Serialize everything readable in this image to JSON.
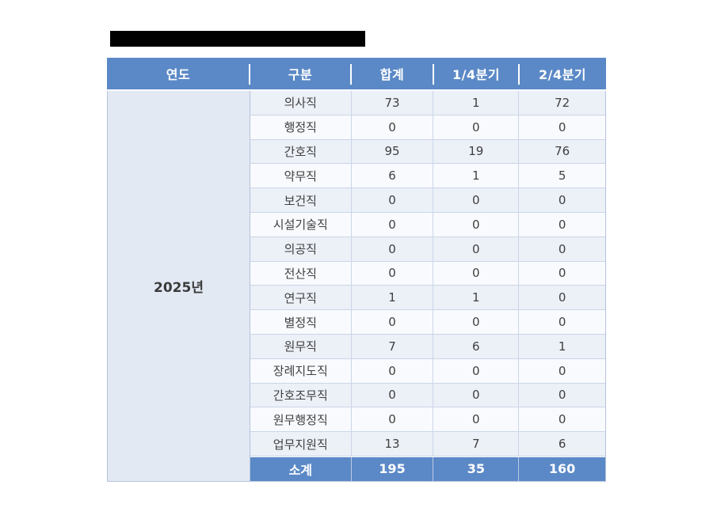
{
  "page": {
    "background": "#ffffff"
  },
  "redacted_title": {
    "color": "#000000"
  },
  "table": {
    "columns": [
      {
        "key": "year",
        "label": "연도"
      },
      {
        "key": "category",
        "label": "구분"
      },
      {
        "key": "total",
        "label": "합계"
      },
      {
        "key": "q1",
        "label": "1/4분기"
      },
      {
        "key": "q2",
        "label": "2/4분기"
      }
    ],
    "year_label": "2025년",
    "rows": [
      {
        "category": "의사직",
        "total": "73",
        "q1": "1",
        "q2": "72"
      },
      {
        "category": "행정직",
        "total": "0",
        "q1": "0",
        "q2": "0"
      },
      {
        "category": "간호직",
        "total": "95",
        "q1": "19",
        "q2": "76"
      },
      {
        "category": "약무직",
        "total": "6",
        "q1": "1",
        "q2": "5"
      },
      {
        "category": "보건직",
        "total": "0",
        "q1": "0",
        "q2": "0"
      },
      {
        "category": "시설기술직",
        "total": "0",
        "q1": "0",
        "q2": "0"
      },
      {
        "category": "의공직",
        "total": "0",
        "q1": "0",
        "q2": "0"
      },
      {
        "category": "전산직",
        "total": "0",
        "q1": "0",
        "q2": "0"
      },
      {
        "category": "연구직",
        "total": "1",
        "q1": "1",
        "q2": "0"
      },
      {
        "category": "별정직",
        "total": "0",
        "q1": "0",
        "q2": "0"
      },
      {
        "category": "원무직",
        "total": "7",
        "q1": "6",
        "q2": "1"
      },
      {
        "category": "장례지도직",
        "total": "0",
        "q1": "0",
        "q2": "0"
      },
      {
        "category": "간호조무직",
        "total": "0",
        "q1": "0",
        "q2": "0"
      },
      {
        "category": "원무행정직",
        "total": "0",
        "q1": "0",
        "q2": "0"
      },
      {
        "category": "업무지원직",
        "total": "13",
        "q1": "7",
        "q2": "6"
      }
    ],
    "summary": {
      "category": "소계",
      "total": "195",
      "q1": "35",
      "q2": "160"
    }
  },
  "colors": {
    "header_blue": "#5b89c7",
    "summary_blue": "#5b89c7",
    "year_cell_bg": "#e3e9f3",
    "row_odd_bg": "#ecf0f7",
    "row_even_bg": "#f8fafd",
    "grid_line": "#ccd6e9",
    "outer_border": "#b7c3da",
    "header_text": "#ffffff",
    "body_text": "#404040",
    "redaction": "#000000"
  }
}
